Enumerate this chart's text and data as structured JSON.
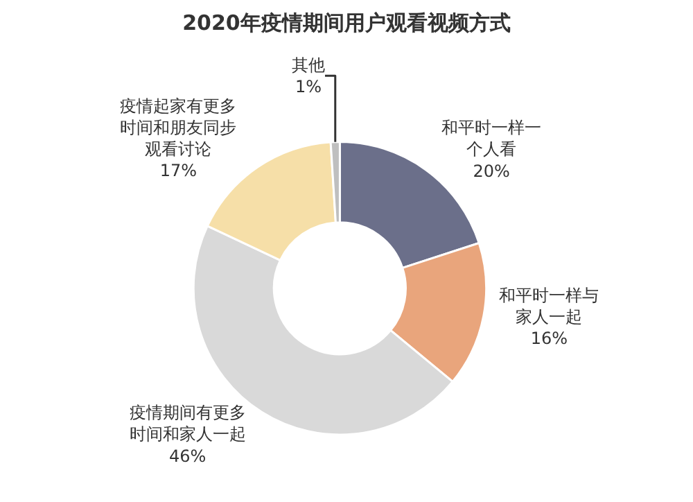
{
  "chart_data": {
    "type": "donut",
    "title": "2020年疫情期间用户观看视频方式",
    "categories": [
      "和平时一样一个人看",
      "和平时一样与家人一起",
      "疫情期间有更多时间和家人一起",
      "疫情起家有更多时间和朋友同步观看讨论",
      "其他"
    ],
    "values": [
      20,
      16,
      46,
      17,
      1
    ],
    "colors": [
      "#6b6f8a",
      "#e9a57c",
      "#d9d9d9",
      "#f6dfa8",
      "#bfbfbf"
    ],
    "value_labels": [
      "20%",
      "16%",
      "46%",
      "17%",
      "1%"
    ],
    "legend": false
  }
}
